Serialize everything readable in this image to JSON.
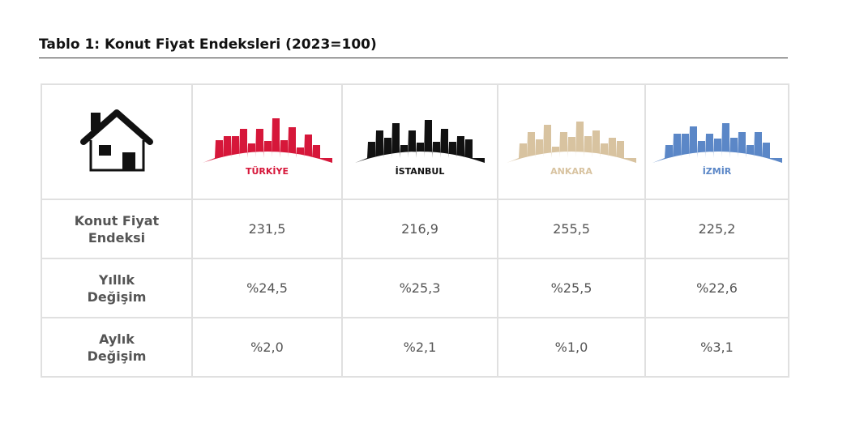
{
  "title": "Tablo 1: Konut Fiyat Endeksleri (2023=100)",
  "table": {
    "columns": [
      "TÜRKİYE",
      "İSTANBUL",
      "ANKARA",
      "İZMİR"
    ],
    "rows": [
      [
        "Konut Fiyat Endeksi",
        "231,5",
        "216,9",
        "255,5",
        "225,2"
      ],
      [
        "Yıllık Değişim",
        "%24,5",
        "%25,3",
        "%25,5",
        "%22,6"
      ],
      [
        "Aylık Değişim",
        "%2,0",
        "%2,1",
        "%1,0",
        "%3,1"
      ]
    ]
  }
}
